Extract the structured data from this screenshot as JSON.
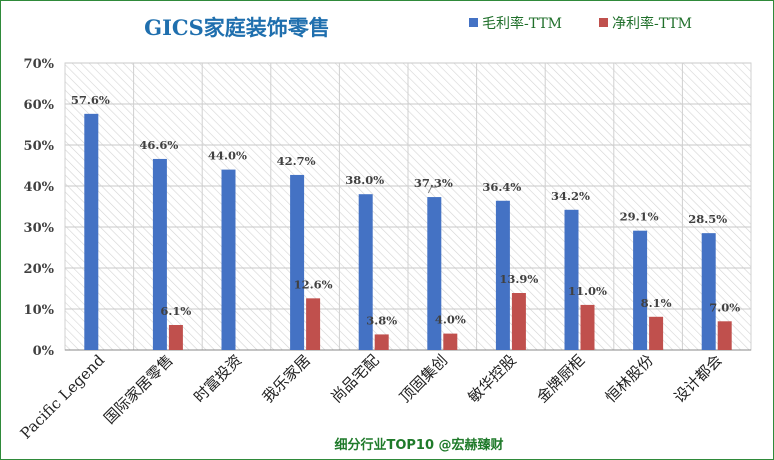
{
  "chart_data": {
    "type": "bar",
    "title": "GICS家庭装饰零售",
    "categories": [
      "Pacific Legend",
      "国际家居零售",
      "时富投资",
      "我乐家居",
      "尚品宅配",
      "顶固集创",
      "敏华控股",
      "金牌厨柜",
      "恒林股份",
      "设计都会"
    ],
    "series": [
      {
        "name": "毛利率-TTM",
        "values": [
          57.6,
          46.6,
          44.0,
          42.7,
          38.0,
          37.3,
          36.4,
          34.2,
          29.1,
          28.5
        ],
        "labels": [
          "57.6%",
          "46.6%",
          "44.0%",
          "42.7%",
          "38.0%",
          "37.3%",
          "36.4%",
          "34.2%",
          "29.1%",
          "28.5%"
        ],
        "color": "#4472c4"
      },
      {
        "name": "净利率-TTM",
        "values": [
          null,
          6.1,
          null,
          12.6,
          3.8,
          4.0,
          13.9,
          11.0,
          8.1,
          7.0
        ],
        "labels": [
          "",
          "6.1%",
          "",
          "12.6%",
          "3.8%",
          "4.0%",
          "13.9%",
          "11.0%",
          "8.1%",
          "7.0%"
        ],
        "color": "#c0504d"
      }
    ],
    "yticks": [
      "0%",
      "10%",
      "20%",
      "30%",
      "40%",
      "50%",
      "60%",
      "70%"
    ],
    "ylim": [
      0,
      70
    ],
    "grid": true,
    "legend": "top-right",
    "footer": "细分行业TOP10 @宏赫臻财"
  }
}
